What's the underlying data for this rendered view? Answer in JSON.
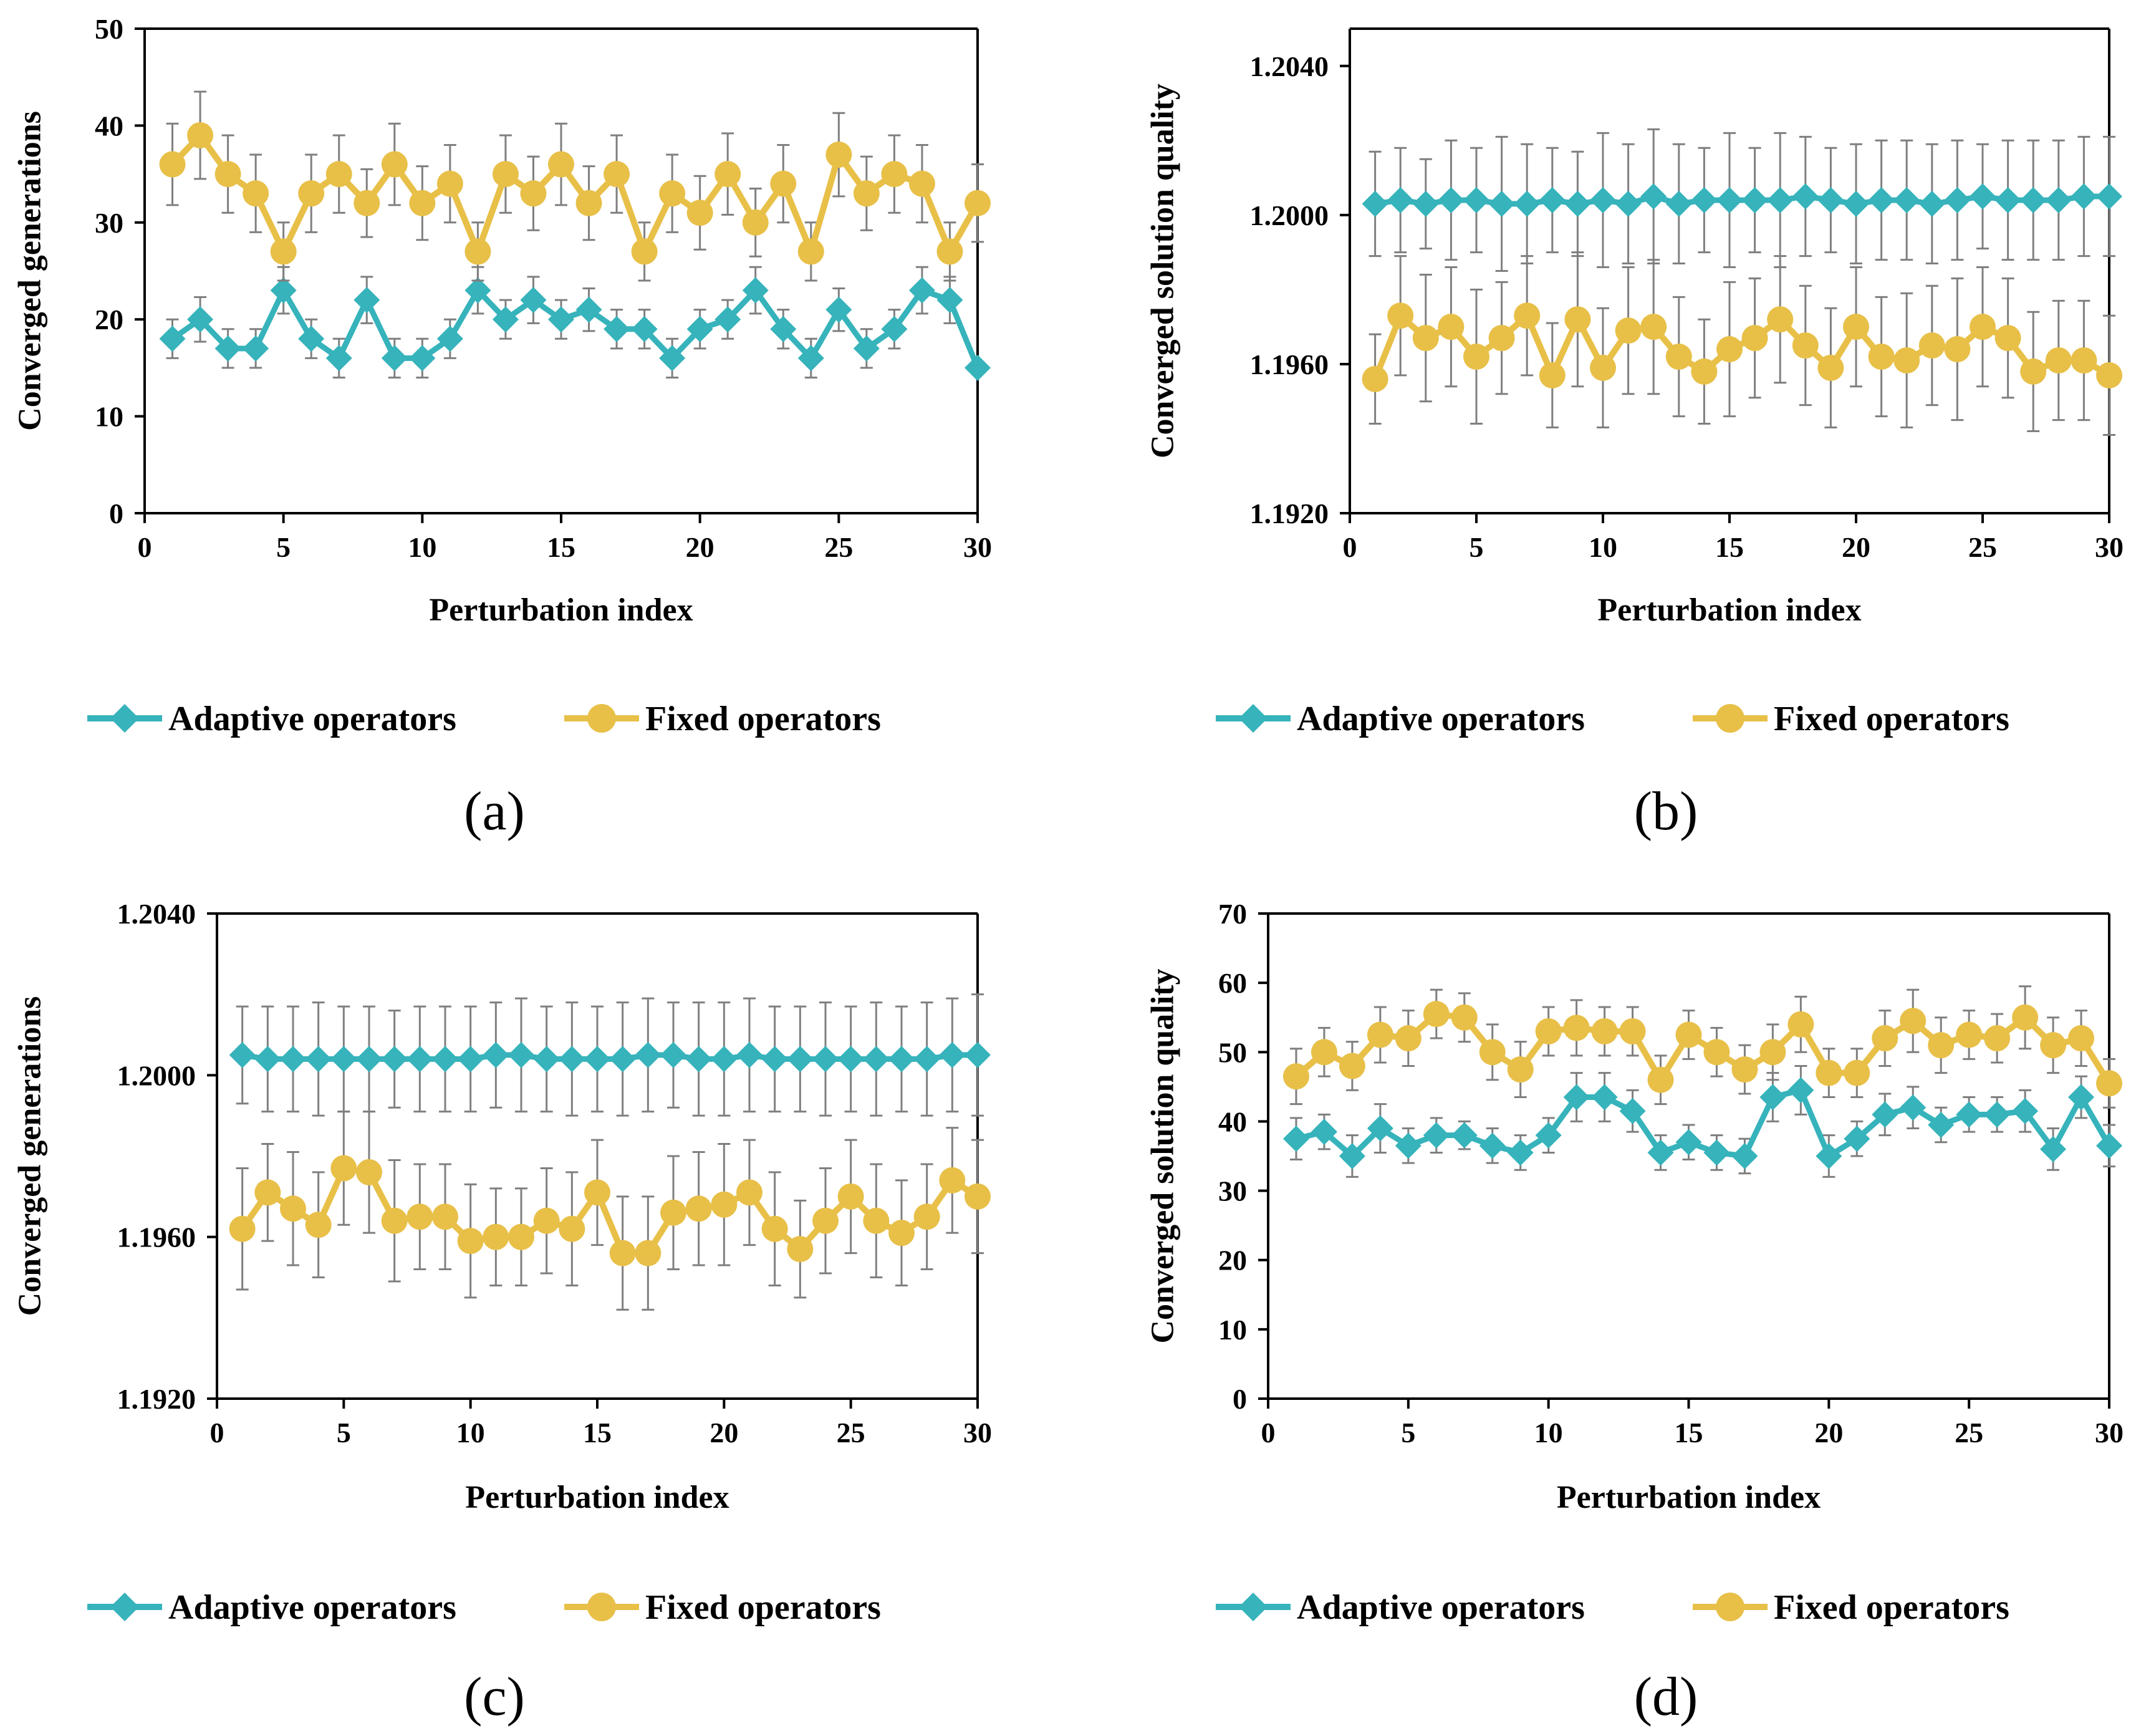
{
  "colors": {
    "adaptive": "#36B3BB",
    "fixed": "#E8C048",
    "error_bar": "#7f7f7f",
    "axis": "#000000"
  },
  "legend": {
    "adaptive": "Adaptive operators",
    "fixed": "Fixed operators"
  },
  "chart_data": [
    {
      "type": "line",
      "panel_label": "(a)",
      "title": "",
      "xlabel": "Perturbation index",
      "ylabel": "Converged generations",
      "xlim": [
        0,
        30
      ],
      "ylim": [
        0,
        50
      ],
      "xticks": [
        0,
        5,
        10,
        15,
        20,
        25,
        30
      ],
      "yticks": [
        0,
        10,
        20,
        30,
        40,
        50
      ],
      "ytick_labels": [
        "0",
        "10",
        "20",
        "30",
        "40",
        "50"
      ],
      "x": [
        1,
        2,
        3,
        4,
        5,
        6,
        7,
        8,
        9,
        10,
        11,
        12,
        13,
        14,
        15,
        16,
        17,
        18,
        19,
        20,
        21,
        22,
        23,
        24,
        25,
        26,
        27,
        28,
        29,
        30
      ],
      "series": [
        {
          "name": "Adaptive operators",
          "marker": "diamond",
          "values": [
            18,
            20,
            17,
            17,
            23,
            18,
            16,
            22,
            16,
            16,
            18,
            23,
            20,
            22,
            20,
            21,
            19,
            19,
            16,
            19,
            20,
            23,
            19,
            16,
            21,
            17,
            19,
            23,
            22,
            15
          ],
          "errors": [
            2,
            2.3,
            2,
            2,
            2.4,
            2,
            2,
            2.4,
            2,
            2,
            2,
            2.4,
            2,
            2.4,
            2,
            2.2,
            2,
            2,
            2,
            2,
            2,
            2.4,
            2,
            2,
            2.2,
            2,
            2,
            2.4,
            2.4,
            0
          ]
        },
        {
          "name": "Fixed operators",
          "marker": "circle",
          "values": [
            36,
            39,
            35,
            33,
            27,
            33,
            35,
            32,
            36,
            32,
            34,
            27,
            35,
            33,
            36,
            32,
            35,
            27,
            33,
            31,
            35,
            30,
            34,
            27,
            37,
            33,
            35,
            34,
            27,
            32
          ],
          "errors": [
            4.2,
            4.5,
            4,
            4,
            3,
            4,
            4,
            3.5,
            4.2,
            3.8,
            4,
            3,
            4,
            3.8,
            4.2,
            3.8,
            4,
            3,
            4,
            3.8,
            4.2,
            3.5,
            4,
            3,
            4.3,
            3.8,
            4,
            4,
            3,
            4
          ]
        }
      ]
    },
    {
      "type": "line",
      "panel_label": "(b)",
      "title": "",
      "xlabel": "Perturbation index",
      "ylabel": "Converged solution quality",
      "xlim": [
        0,
        30
      ],
      "ylim": [
        1.192,
        1.205
      ],
      "xticks": [
        0,
        5,
        10,
        15,
        20,
        25,
        30
      ],
      "yticks": [
        1.192,
        1.196,
        1.2,
        1.204
      ],
      "ytick_labels": [
        "1.1920",
        "1.1960",
        "1.2000",
        "1.2040"
      ],
      "x": [
        1,
        2,
        3,
        4,
        5,
        6,
        7,
        8,
        9,
        10,
        11,
        12,
        13,
        14,
        15,
        16,
        17,
        18,
        19,
        20,
        21,
        22,
        23,
        24,
        25,
        26,
        27,
        28,
        29,
        30
      ],
      "series": [
        {
          "name": "Adaptive operators",
          "marker": "diamond",
          "values": [
            1.2003,
            1.2004,
            1.2003,
            1.2004,
            1.2004,
            1.2003,
            1.2003,
            1.2004,
            1.2003,
            1.2004,
            1.2003,
            1.2005,
            1.2003,
            1.2004,
            1.2004,
            1.2004,
            1.2004,
            1.2005,
            1.2004,
            1.2003,
            1.2004,
            1.2004,
            1.2003,
            1.2004,
            1.2005,
            1.2004,
            1.2004,
            1.2004,
            1.2005,
            1.2005
          ],
          "errors": [
            0.0014,
            0.0014,
            0.0012,
            0.0016,
            0.0014,
            0.0018,
            0.0016,
            0.0014,
            0.0014,
            0.0018,
            0.0016,
            0.0018,
            0.0016,
            0.0014,
            0.0018,
            0.0014,
            0.0018,
            0.0016,
            0.0014,
            0.0016,
            0.0016,
            0.0016,
            0.0016,
            0.0016,
            0.0014,
            0.0016,
            0.0016,
            0.0016,
            0.0016,
            0.0016
          ]
        },
        {
          "name": "Fixed operators",
          "marker": "circle",
          "values": [
            1.1956,
            1.1973,
            1.1967,
            1.197,
            1.1962,
            1.1967,
            1.1973,
            1.1957,
            1.1972,
            1.1959,
            1.1969,
            1.197,
            1.1962,
            1.1958,
            1.1964,
            1.1967,
            1.1972,
            1.1965,
            1.1959,
            1.197,
            1.1962,
            1.1961,
            1.1965,
            1.1964,
            1.197,
            1.1967,
            1.1958,
            1.1961,
            1.1961,
            1.1957
          ],
          "errors": [
            0.0012,
            0.0016,
            0.0017,
            0.0016,
            0.0018,
            0.0015,
            0.0016,
            0.0014,
            0.0018,
            0.0016,
            0.0017,
            0.0018,
            0.0016,
            0.0014,
            0.0018,
            0.0016,
            0.0017,
            0.0016,
            0.0016,
            0.0016,
            0.0016,
            0.0018,
            0.0016,
            0.0019,
            0.0016,
            0.0016,
            0.0016,
            0.0016,
            0.0016,
            0.0016
          ]
        }
      ]
    },
    {
      "type": "line",
      "panel_label": "(c)",
      "title": "",
      "xlabel": "Perturbation index",
      "ylabel": "Converged generations",
      "xlim": [
        0,
        30
      ],
      "ylim": [
        1.192,
        1.204
      ],
      "xticks": [
        0,
        5,
        10,
        15,
        20,
        25,
        30
      ],
      "yticks": [
        1.192,
        1.196,
        1.2,
        1.204
      ],
      "ytick_labels": [
        "1.1920",
        "1.1960",
        "1.2000",
        "1.2040"
      ],
      "x": [
        1,
        2,
        3,
        4,
        5,
        6,
        7,
        8,
        9,
        10,
        11,
        12,
        13,
        14,
        15,
        16,
        17,
        18,
        19,
        20,
        21,
        22,
        23,
        24,
        25,
        26,
        27,
        28,
        29,
        30
      ],
      "series": [
        {
          "name": "Adaptive operators",
          "marker": "diamond",
          "values": [
            1.2005,
            1.2004,
            1.2004,
            1.2004,
            1.2004,
            1.2004,
            1.2004,
            1.2004,
            1.2004,
            1.2004,
            1.2005,
            1.2005,
            1.2004,
            1.2004,
            1.2004,
            1.2004,
            1.2005,
            1.2005,
            1.2004,
            1.2004,
            1.2005,
            1.2004,
            1.2004,
            1.2004,
            1.2004,
            1.2004,
            1.2004,
            1.2004,
            1.2005,
            1.2005
          ],
          "errors": [
            0.0012,
            0.0013,
            0.0013,
            0.0014,
            0.0013,
            0.0013,
            0.0012,
            0.0013,
            0.0013,
            0.0013,
            0.0013,
            0.0014,
            0.0013,
            0.0014,
            0.0013,
            0.0014,
            0.0014,
            0.0013,
            0.0014,
            0.0014,
            0.0014,
            0.0013,
            0.0013,
            0.0014,
            0.0013,
            0.0014,
            0.0013,
            0.0014,
            0.0014,
            0.0015
          ]
        },
        {
          "name": "Fixed operators",
          "marker": "circle",
          "values": [
            1.1962,
            1.1971,
            1.1967,
            1.1963,
            1.1977,
            1.1976,
            1.1964,
            1.1965,
            1.1965,
            1.1959,
            1.196,
            1.196,
            1.1964,
            1.1962,
            1.1971,
            1.1956,
            1.1956,
            1.1966,
            1.1967,
            1.1968,
            1.1971,
            1.1962,
            1.1957,
            1.1964,
            1.197,
            1.1964,
            1.1961,
            1.1965,
            1.1974,
            1.197
          ],
          "errors": [
            0.0015,
            0.0012,
            0.0014,
            0.0013,
            0.0014,
            0.0015,
            0.0015,
            0.0013,
            0.0013,
            0.0014,
            0.0012,
            0.0012,
            0.0013,
            0.0014,
            0.0013,
            0.0014,
            0.0014,
            0.0014,
            0.0014,
            0.0015,
            0.0013,
            0.0014,
            0.0012,
            0.0013,
            0.0014,
            0.0014,
            0.0013,
            0.0013,
            0.0013,
            0.0014
          ]
        }
      ]
    },
    {
      "type": "line",
      "panel_label": "(d)",
      "title": "",
      "xlabel": "Perturbation index",
      "ylabel": "Converged solution quality",
      "xlim": [
        0,
        30
      ],
      "ylim": [
        0,
        70
      ],
      "xticks": [
        0,
        5,
        10,
        15,
        20,
        25,
        30
      ],
      "yticks": [
        0,
        10,
        20,
        30,
        40,
        50,
        60,
        70
      ],
      "ytick_labels": [
        "0",
        "10",
        "20",
        "30",
        "40",
        "50",
        "60",
        "70"
      ],
      "x": [
        1,
        2,
        3,
        4,
        5,
        6,
        7,
        8,
        9,
        10,
        11,
        12,
        13,
        14,
        15,
        16,
        17,
        18,
        19,
        20,
        21,
        22,
        23,
        24,
        25,
        26,
        27,
        28,
        29,
        30
      ],
      "series": [
        {
          "name": "Adaptive operators",
          "marker": "diamond",
          "values": [
            37.5,
            38.5,
            35,
            39,
            36.5,
            38,
            38,
            36.5,
            35.5,
            38,
            43.5,
            43.5,
            41.5,
            35.5,
            37,
            35.5,
            35,
            43.5,
            44.5,
            35,
            37.5,
            41,
            42,
            39.5,
            41,
            41,
            41.5,
            36,
            43.5,
            36.5
          ],
          "errors": [
            3,
            2.5,
            3,
            3.5,
            2.5,
            2.5,
            2,
            2.5,
            2.5,
            2.5,
            3.5,
            3.5,
            3,
            2.5,
            2.5,
            2.5,
            2.5,
            3.5,
            3.5,
            3,
            2.5,
            3,
            3,
            2.5,
            2.5,
            2.5,
            3,
            3,
            3,
            3
          ]
        },
        {
          "name": "Fixed operators",
          "marker": "circle",
          "values": [
            46.5,
            50,
            48,
            52.5,
            52,
            55.5,
            55,
            50,
            47.5,
            53,
            53.5,
            53,
            53,
            46,
            52.5,
            50,
            47.5,
            50,
            54,
            47,
            47,
            52,
            54.5,
            51,
            52.5,
            52,
            55,
            51,
            52,
            45.5
          ],
          "errors": [
            4,
            3.5,
            3.5,
            4,
            4,
            3.5,
            3.5,
            4,
            4,
            3.5,
            4,
            3.5,
            3.5,
            3.5,
            3.5,
            3.5,
            3.5,
            4,
            4,
            3.5,
            3.5,
            4,
            4.5,
            4,
            3.5,
            3.5,
            4.5,
            4,
            4,
            3.5
          ]
        }
      ]
    }
  ]
}
